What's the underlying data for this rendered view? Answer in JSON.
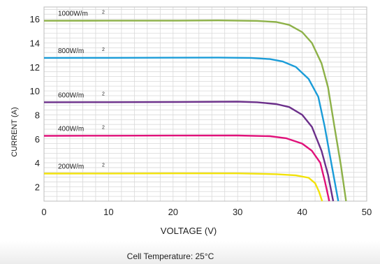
{
  "chart_data": {
    "type": "line",
    "title": "",
    "xlabel": "VOLTAGE (V)",
    "ylabel": "CURRENT (A)",
    "xlim": [
      0,
      50
    ],
    "ylim": [
      0.8,
      17
    ],
    "xticks": [
      0,
      10,
      20,
      30,
      40,
      50
    ],
    "yticks": [
      2,
      4,
      6,
      8,
      10,
      12,
      14,
      16
    ],
    "grid": true,
    "legend": "none",
    "annotation": "Cell Temperature: 25°C",
    "series": [
      {
        "name": "1000W/m",
        "sup": "2",
        "color": "#8db148",
        "points": [
          [
            0,
            15.85
          ],
          [
            10,
            15.86
          ],
          [
            20,
            15.86
          ],
          [
            27,
            15.88
          ],
          [
            33,
            15.84
          ],
          [
            36,
            15.75
          ],
          [
            38,
            15.5
          ],
          [
            40,
            14.9
          ],
          [
            41.5,
            14.0
          ],
          [
            43,
            12.3
          ],
          [
            44,
            10.3
          ],
          [
            45,
            7.0
          ],
          [
            46,
            3.8
          ],
          [
            46.8,
            0.8
          ]
        ]
      },
      {
        "name": "800W/m",
        "sup": "2",
        "color": "#1a9cd8",
        "points": [
          [
            0,
            12.75
          ],
          [
            10,
            12.76
          ],
          [
            20,
            12.77
          ],
          [
            27,
            12.78
          ],
          [
            32,
            12.75
          ],
          [
            35,
            12.65
          ],
          [
            37,
            12.45
          ],
          [
            39,
            12.0
          ],
          [
            41,
            11.0
          ],
          [
            42.5,
            9.5
          ],
          [
            43.5,
            7.0
          ],
          [
            44.5,
            4.0
          ],
          [
            45.6,
            0.8
          ]
        ]
      },
      {
        "name": "600W/m",
        "sup": "2",
        "color": "#6b2f8a",
        "points": [
          [
            0,
            9.05
          ],
          [
            10,
            9.06
          ],
          [
            20,
            9.07
          ],
          [
            30,
            9.1
          ],
          [
            33,
            9.05
          ],
          [
            36,
            8.9
          ],
          [
            38,
            8.65
          ],
          [
            40,
            8.0
          ],
          [
            41.5,
            7.0
          ],
          [
            43,
            5.0
          ],
          [
            44,
            3.0
          ],
          [
            44.8,
            0.8
          ]
        ]
      },
      {
        "name": "400W/m",
        "sup": "2",
        "color": "#e0117a",
        "points": [
          [
            0,
            6.25
          ],
          [
            10,
            6.26
          ],
          [
            20,
            6.27
          ],
          [
            30,
            6.28
          ],
          [
            35,
            6.22
          ],
          [
            37.5,
            6.05
          ],
          [
            40,
            5.6
          ],
          [
            41.5,
            5.0
          ],
          [
            42.8,
            4.0
          ],
          [
            43.5,
            2.5
          ],
          [
            44.2,
            0.8
          ]
        ]
      },
      {
        "name": "200W/m",
        "sup": "2",
        "color": "#f2e20a",
        "points": [
          [
            0,
            3.1
          ],
          [
            10,
            3.11
          ],
          [
            20,
            3.12
          ],
          [
            30,
            3.12
          ],
          [
            36,
            3.05
          ],
          [
            39,
            2.95
          ],
          [
            41,
            2.75
          ],
          [
            42,
            2.3
          ],
          [
            42.6,
            1.6
          ],
          [
            43.1,
            0.8
          ]
        ]
      }
    ]
  }
}
